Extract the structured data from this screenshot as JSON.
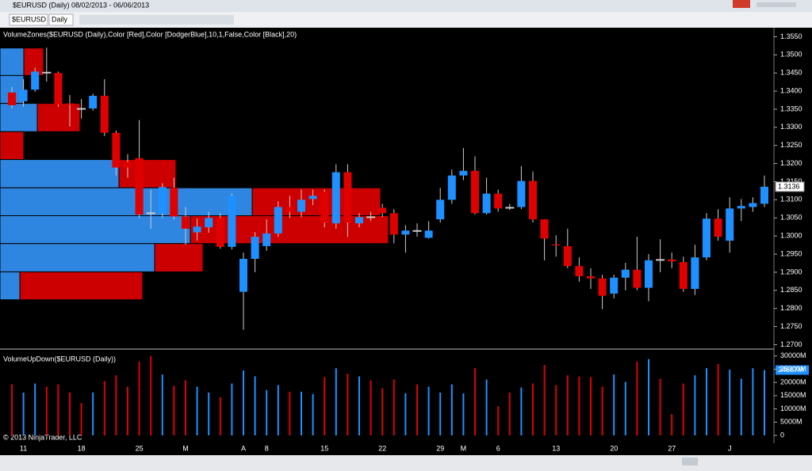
{
  "window": {
    "title": "$EURUSD (Daily)  08/02/2013 - 06/06/2013"
  },
  "toolbar": {
    "instrument": "$EURUSD",
    "interval": "Daily"
  },
  "copyright": "© 2013 NinjaTrader, LLC",
  "chart_data": [
    {
      "type": "candlestick",
      "indicator_label": "VolumeZones($EURUSD (Daily),Color [Red],Color [DodgerBlue],10,1,False,Color [Black],20)",
      "up_color": "#1e90ff",
      "down_color": "#e00000",
      "categories": [
        null,
        "11",
        null,
        null,
        null,
        null,
        "18",
        null,
        null,
        null,
        null,
        "25",
        null,
        null,
        null,
        "M",
        null,
        null,
        null,
        null,
        "A",
        null,
        "8",
        null,
        null,
        null,
        null,
        "15",
        null,
        null,
        null,
        null,
        "22",
        null,
        null,
        null,
        null,
        "29",
        null,
        "M",
        null,
        null,
        "6",
        null,
        null,
        null,
        null,
        "13",
        null,
        null,
        null,
        null,
        "20",
        null,
        null,
        null,
        null,
        "27",
        null,
        null,
        null,
        null,
        "J",
        null,
        null,
        null
      ],
      "open": [
        1.3396,
        1.3372,
        1.3404,
        1.3452,
        1.345,
        1.3366,
        1.3352,
        1.3352,
        1.3387,
        1.3285,
        1.3204,
        1.3215,
        1.3064,
        1.3063,
        1.3133,
        1.3054,
        1.301,
        1.3024,
        1.305,
        1.297,
        1.2846,
        1.2937,
        1.2972,
        1.3007,
        1.308,
        1.3067,
        1.3102,
        1.3122,
        1.3035,
        1.3176,
        1.3035,
        1.3053,
        1.3078,
        1.3063,
        1.3004,
        1.3015,
        1.2995,
        1.3046,
        1.31,
        1.3167,
        1.318,
        1.3063,
        1.3117,
        1.3079,
        1.308,
        1.3152,
        1.3046,
        1.2977,
        1.2972,
        1.2917,
        1.2889,
        1.2883,
        1.2841,
        1.2885,
        1.2907,
        1.2857,
        1.2935,
        1.2935,
        1.2928,
        1.2854,
        1.2941,
        1.3048,
        1.2987,
        1.3076,
        1.308,
        1.3089
      ],
      "high": [
        1.3411,
        1.3433,
        1.3465,
        1.352,
        1.3454,
        1.3389,
        1.3378,
        1.3393,
        1.3433,
        1.3291,
        1.3226,
        1.332,
        1.3128,
        1.3146,
        1.3161,
        1.308,
        1.3048,
        1.3067,
        1.3063,
        1.3117,
        1.2954,
        1.3011,
        1.3046,
        1.3096,
        1.3111,
        1.3128,
        1.3128,
        1.3128,
        1.3198,
        1.3198,
        1.3063,
        1.3067,
        1.3089,
        1.3074,
        1.303,
        1.3035,
        1.3041,
        1.3133,
        1.3183,
        1.3243,
        1.322,
        1.3161,
        1.3128,
        1.3089,
        1.3193,
        1.3178,
        1.3046,
        1.3002,
        1.302,
        1.2941,
        1.2911,
        1.2893,
        1.2893,
        1.2926,
        1.2998,
        1.295,
        1.2991,
        1.2954,
        1.2943,
        1.2976,
        1.3063,
        1.3074,
        1.3107,
        1.3102,
        1.3107,
        1.3167
      ],
      "low": [
        1.3352,
        1.3357,
        1.3398,
        1.3426,
        1.3357,
        1.3302,
        1.3324,
        1.3346,
        1.3276,
        1.3167,
        1.3161,
        1.305,
        1.302,
        1.305,
        1.3046,
        1.2976,
        1.2987,
        1.3009,
        1.2965,
        1.2963,
        1.2741,
        1.29,
        1.2959,
        1.2998,
        1.305,
        1.3052,
        1.3085,
        1.3024,
        1.302,
        1.2998,
        1.3024,
        1.3041,
        1.3052,
        1.298,
        1.2954,
        1.2998,
        1.2993,
        1.3037,
        1.3089,
        1.3154,
        1.3059,
        1.3059,
        1.3067,
        1.3072,
        1.3074,
        1.3037,
        1.2933,
        1.2943,
        1.2911,
        1.2874,
        1.2854,
        1.2798,
        1.2828,
        1.285,
        1.285,
        1.282,
        1.29,
        1.2911,
        1.2846,
        1.2837,
        1.2933,
        1.2987,
        1.2954,
        1.3041,
        1.3067,
        1.308
      ],
      "close": [
        1.3361,
        1.3404,
        1.3454,
        1.345,
        1.3363,
        1.3363,
        1.335,
        1.3387,
        1.3285,
        1.3189,
        1.3189,
        1.3059,
        1.3062,
        1.3135,
        1.3054,
        1.302,
        1.3026,
        1.305,
        1.297,
        1.3111,
        1.2937,
        1.2998,
        1.3007,
        1.308,
        1.3067,
        1.31,
        1.3111,
        1.3037,
        1.3176,
        1.3037,
        1.3052,
        1.3052,
        1.3063,
        1.3004,
        1.3015,
        1.3013,
        1.3015,
        1.31,
        1.3167,
        1.318,
        1.3063,
        1.3117,
        1.3076,
        1.3078,
        1.3152,
        1.3046,
        1.2993,
        1.2974,
        1.2917,
        1.2889,
        1.2883,
        1.2835,
        1.2885,
        1.2907,
        1.2857,
        1.2933,
        1.2934,
        1.293,
        1.2854,
        1.2941,
        1.3048,
        1.2998,
        1.3076,
        1.3083,
        1.3091,
        1.3136
      ],
      "zones": [
        {
          "high": 1.3519,
          "low": 1.3443,
          "up": 30,
          "down": 25
        },
        {
          "high": 1.3443,
          "low": 1.3366,
          "up": 30,
          "down": 0
        },
        {
          "high": 1.3366,
          "low": 1.3288,
          "up": 47,
          "down": 54
        },
        {
          "high": 1.3288,
          "low": 1.3211,
          "up": 0,
          "down": 30
        },
        {
          "high": 1.3211,
          "low": 1.3133,
          "up": 150,
          "down": 72
        },
        {
          "high": 1.3133,
          "low": 1.3056,
          "up": 318,
          "down": 162
        },
        {
          "high": 1.3056,
          "low": 1.2979,
          "up": 240,
          "down": 250
        },
        {
          "high": 1.2979,
          "low": 1.2901,
          "up": 195,
          "down": 61
        },
        {
          "high": 1.2901,
          "low": 1.2824,
          "up": 25,
          "down": 155
        }
      ],
      "ylim": [
        1.269,
        1.3575
      ],
      "yticks": [
        {
          "value": 1.27,
          "label": "1.2700"
        },
        {
          "value": 1.275,
          "label": "1.2750"
        },
        {
          "value": 1.28,
          "label": "1.2800"
        },
        {
          "value": 1.285,
          "label": "1.2850"
        },
        {
          "value": 1.29,
          "label": "1.2900"
        },
        {
          "value": 1.295,
          "label": "1.2950"
        },
        {
          "value": 1.3,
          "label": "1.3000"
        },
        {
          "value": 1.305,
          "label": "1.3050"
        },
        {
          "value": 1.31,
          "label": "1.3100"
        },
        {
          "value": 1.315,
          "label": "1.3150"
        },
        {
          "value": 1.32,
          "label": "1.3200"
        },
        {
          "value": 1.325,
          "label": "1.3250"
        },
        {
          "value": 1.33,
          "label": "1.3300"
        },
        {
          "value": 1.335,
          "label": "1.3350"
        },
        {
          "value": 1.34,
          "label": "1.3400"
        },
        {
          "value": 1.345,
          "label": "1.3450"
        },
        {
          "value": 1.35,
          "label": "1.3500"
        },
        {
          "value": 1.355,
          "label": "1.3550"
        }
      ]
    },
    {
      "type": "bar",
      "indicator_label": "VolumeUpDown($EURUSD (Daily))",
      "values": [
        19300,
        16200,
        19600,
        18400,
        19300,
        16200,
        12200,
        16200,
        20500,
        22700,
        18400,
        27900,
        30000,
        23000,
        18700,
        20800,
        18400,
        16200,
        14400,
        19600,
        24500,
        22300,
        17100,
        19000,
        16500,
        16500,
        15600,
        22000,
        25400,
        23300,
        22300,
        20800,
        17800,
        21100,
        15900,
        19300,
        18400,
        16200,
        19300,
        15900,
        25400,
        21100,
        11000,
        16200,
        18100,
        19600,
        26600,
        19000,
        22700,
        22300,
        22000,
        18400,
        23000,
        20200,
        27900,
        28800,
        21400,
        8000,
        19600,
        22700,
        25400,
        26900,
        24800,
        21400,
        25400,
        24667
      ],
      "value_labels": [
        null,
        null,
        null,
        null,
        null,
        null,
        null,
        null,
        null,
        null,
        null,
        null,
        null,
        null,
        null,
        null,
        null,
        null,
        null,
        null,
        null,
        null,
        null,
        null,
        null,
        null,
        null,
        null,
        null,
        null,
        null,
        null,
        null,
        null,
        null,
        null,
        null,
        null,
        null,
        null,
        null,
        null,
        null,
        null,
        null,
        null,
        null,
        null,
        null,
        null,
        null,
        null,
        null,
        null,
        null,
        null,
        null,
        null,
        null,
        null,
        null,
        null,
        null,
        null,
        null,
        "24667M"
      ],
      "ylim": [
        -3000,
        32000
      ],
      "yticks": [
        0,
        {
          "value": 5000,
          "label": "5000M"
        },
        {
          "value": 10000,
          "label": "10000M"
        },
        {
          "value": 15000,
          "label": "15000M"
        },
        {
          "value": 20000,
          "label": "20000M"
        },
        {
          "value": 25000,
          "label": "25000M"
        },
        {
          "value": 30000,
          "label": "30000M"
        }
      ]
    }
  ]
}
